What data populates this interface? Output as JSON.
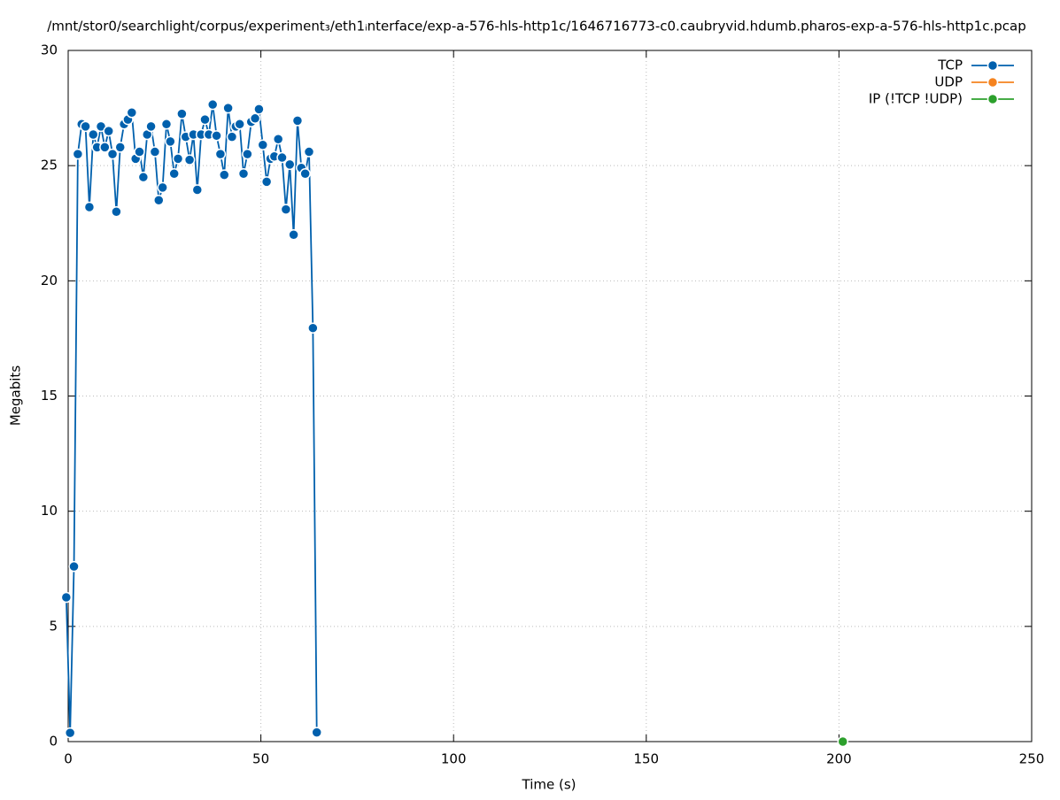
{
  "chart_data": {
    "type": "line",
    "title": "/mnt/stor0/searchlight/corpus/experiment₃/eth1ᵢnterface/exp-a-576-hls-http1c/1646716773-c0.caubryvid.hdumb.pharos-exp-a-576-hls-http1c.pcap",
    "x_label": "Time (s)",
    "y_label": "Megabits",
    "xlim": [
      0,
      250
    ],
    "xticks": [
      0,
      50,
      100,
      150,
      200,
      250
    ],
    "ylim": [
      0,
      30
    ],
    "yticks": [
      0,
      5,
      10,
      15,
      20,
      25,
      30
    ],
    "grid": true,
    "legend": "top-right",
    "series": [
      {
        "name": "TCP",
        "color": "#0060ad",
        "x": [
          -0.5,
          0.5,
          1.5,
          2.5,
          3.5,
          4.5,
          5.5,
          6.5,
          7.5,
          8.5,
          9.5,
          10.5,
          11.5,
          12.5,
          13.5,
          14.5,
          15.5,
          16.5,
          17.5,
          18.5,
          19.5,
          20.5,
          21.5,
          22.5,
          23.5,
          24.5,
          25.5,
          26.5,
          27.5,
          28.5,
          29.5,
          30.5,
          31.5,
          32.5,
          33.5,
          34.5,
          35.5,
          36.5,
          37.5,
          38.5,
          39.5,
          40.5,
          41.5,
          42.5,
          43.5,
          44.5,
          45.5,
          46.5,
          47.5,
          48.5,
          49.5,
          50.5,
          51.5,
          52.5,
          53.5,
          54.5,
          55.5,
          56.5,
          57.5,
          58.5,
          59.5,
          60.5,
          61.5,
          62.5,
          63.5,
          64.5
        ],
        "values": [
          6.26,
          0.38,
          7.6,
          25.5,
          26.8,
          26.7,
          23.2,
          26.35,
          25.8,
          26.7,
          25.8,
          26.5,
          25.5,
          23.0,
          25.8,
          26.8,
          27.0,
          27.3,
          25.3,
          25.6,
          24.5,
          26.35,
          26.7,
          25.6,
          23.5,
          24.05,
          26.8,
          26.05,
          24.65,
          25.3,
          27.25,
          26.25,
          25.25,
          26.35,
          23.95,
          26.35,
          27.0,
          26.35,
          27.65,
          26.3,
          25.5,
          24.6,
          27.5,
          26.25,
          26.7,
          26.8,
          24.65,
          25.5,
          26.9,
          27.05,
          27.45,
          25.9,
          24.3,
          25.3,
          25.4,
          26.15,
          25.35,
          23.1,
          25.05,
          22.0,
          26.95,
          24.9,
          24.65,
          25.6,
          17.95,
          0.4
        ]
      },
      {
        "name": "UDP",
        "color": "#f5831f",
        "x": [],
        "values": []
      },
      {
        "name": "IP (!TCP  !UDP)",
        "color": "#2ca02c",
        "x": [
          201
        ],
        "values": [
          0
        ]
      }
    ]
  }
}
